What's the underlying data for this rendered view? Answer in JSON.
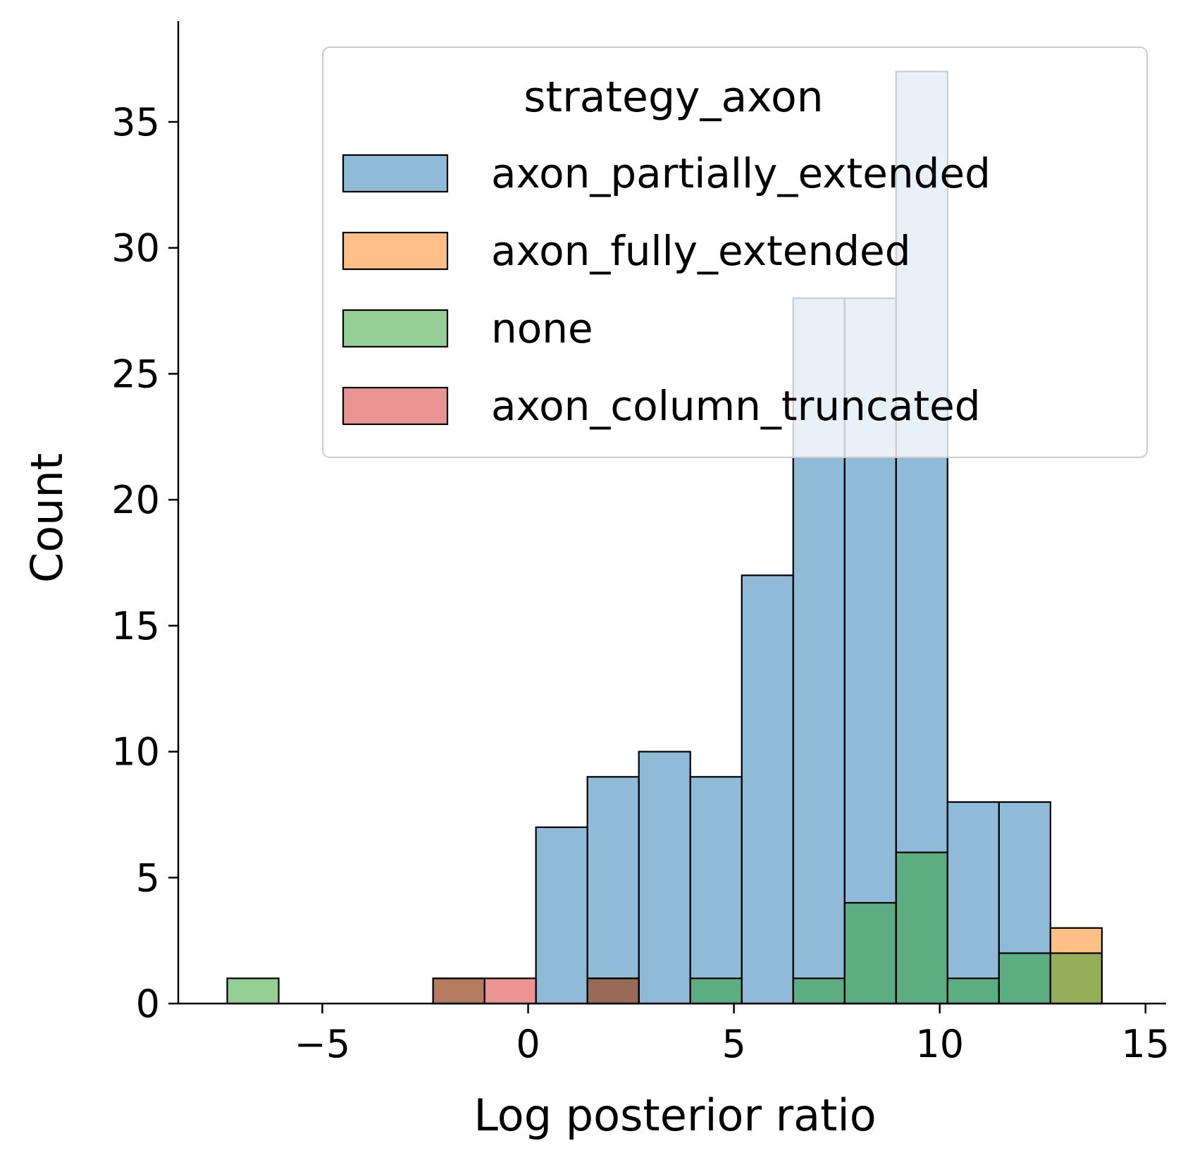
{
  "chart_data": {
    "type": "bar",
    "subtype": "overlaid-histogram",
    "xlabel": "Log posterior ratio",
    "ylabel": "Count",
    "xlim": [
      -8.5,
      15.5
    ],
    "ylim": [
      0,
      39
    ],
    "xticks": [
      -5,
      0,
      5,
      10,
      15
    ],
    "xtick_labels": [
      "−5",
      "0",
      "5",
      "10",
      "15"
    ],
    "yticks": [
      0,
      5,
      10,
      15,
      20,
      25,
      30,
      35
    ],
    "ytick_labels": [
      "0",
      "5",
      "10",
      "15",
      "20",
      "25",
      "30",
      "35"
    ],
    "bin_edges": [
      -7.31,
      -6.06,
      -4.81,
      -3.56,
      -2.31,
      -1.06,
      0.19,
      1.44,
      2.69,
      3.94,
      5.19,
      6.44,
      7.69,
      8.94,
      10.19,
      11.44,
      12.69,
      13.94
    ],
    "legend": {
      "title": "strategy_axon",
      "position": "upper right"
    },
    "grid": false,
    "series": [
      {
        "name": "axon_partially_extended",
        "color": "#1f77b4",
        "values": [
          0,
          0,
          0,
          0,
          0,
          0,
          7,
          9,
          10,
          9,
          17,
          28,
          28,
          37,
          8,
          8,
          0
        ]
      },
      {
        "name": "axon_fully_extended",
        "color": "#ff7f0e",
        "values": [
          0,
          0,
          0,
          0,
          0,
          0,
          0,
          0,
          0,
          0,
          0,
          0,
          0,
          0,
          0,
          0,
          3
        ]
      },
      {
        "name": "none",
        "color": "#2ca02c",
        "values": [
          1,
          0,
          0,
          0,
          1,
          0,
          0,
          1,
          0,
          1,
          0,
          1,
          4,
          6,
          1,
          2,
          2
        ]
      },
      {
        "name": "axon_column_truncated",
        "color": "#d62728",
        "values": [
          0,
          0,
          0,
          0,
          1,
          1,
          0,
          1,
          0,
          0,
          0,
          0,
          0,
          0,
          0,
          0,
          0
        ]
      }
    ]
  }
}
